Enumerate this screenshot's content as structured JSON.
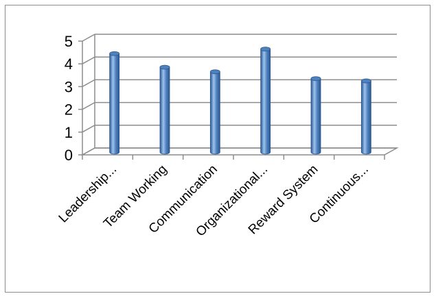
{
  "chart_data": {
    "type": "bar",
    "style": "3d-cylinder",
    "categories": [
      "Leadership...",
      "Team Working",
      "Communication",
      "Organizational...",
      "Reward System",
      "Continuous..."
    ],
    "values": [
      4.3,
      3.7,
      3.5,
      4.5,
      3.2,
      3.1
    ],
    "ylim": [
      0,
      5
    ],
    "yticks": [
      "0",
      "1",
      "2",
      "3",
      "4",
      "5"
    ],
    "grid": true,
    "legend": "none",
    "colors": {
      "bar": "#4f81bd",
      "bar_dark": "#2c5791",
      "bar_light": "#9dc3ee",
      "grid": "#8c8c8c"
    }
  }
}
